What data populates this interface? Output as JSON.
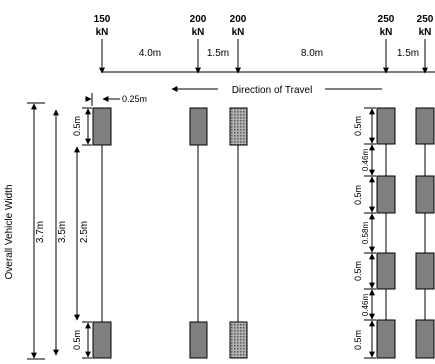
{
  "loads": {
    "a1": {
      "value": "150",
      "unit": "kN"
    },
    "a2": {
      "value": "200",
      "unit": "kN"
    },
    "a3": {
      "value": "200",
      "unit": "kN"
    },
    "a4": {
      "value": "250",
      "unit": "kN"
    },
    "a5": {
      "value": "250",
      "unit": "kN"
    }
  },
  "spacings": {
    "s12": "4.0m",
    "s23": "1.5m",
    "s34": "8.0m",
    "s45": "1.5m"
  },
  "direction_label": "Direction of Travel",
  "wheel_offset": "0.25m",
  "widths": {
    "overall_label": "Overall Vehicle Width",
    "overall_value": "3.7m",
    "inner_value": "3.5m",
    "track_value": "2.5m",
    "wheel_top": "0.5m",
    "wheel_bottom": "0.5m"
  },
  "dual_axle": {
    "w1": "0.5m",
    "gap1": "0.46m",
    "w2": "0.5m",
    "gap2": "0.58m",
    "w3": "0.5m",
    "gap3": "0.46m",
    "w4": "0.5m"
  },
  "colors": {
    "line": "#000000",
    "wheel_fill": "#7f7f7f"
  }
}
